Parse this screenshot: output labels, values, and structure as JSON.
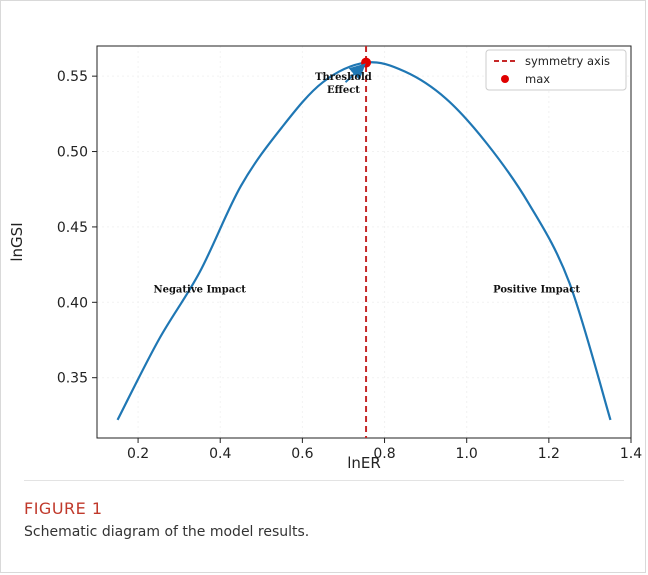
{
  "figure": {
    "label": "FIGURE 1",
    "caption": "Schematic diagram of the model results."
  },
  "chart_data": {
    "type": "line",
    "title": "",
    "xlabel": "lnER",
    "ylabel": "lnGSI",
    "xlim": [
      0.1,
      1.4
    ],
    "ylim": [
      0.31,
      0.57
    ],
    "xticks": [
      0.2,
      0.4,
      0.6,
      0.8,
      1.0,
      1.2,
      1.4
    ],
    "xtick_labels": [
      "0.2",
      "0.4",
      "0.6",
      "0.8",
      "1.0",
      "1.2",
      "1.4"
    ],
    "yticks": [
      0.35,
      0.4,
      0.45,
      0.5,
      0.55
    ],
    "ytick_labels": [
      "0.35",
      "0.40",
      "0.45",
      "0.50",
      "0.55"
    ],
    "grid": true,
    "legend_position": "top-right",
    "series": [
      {
        "kind": "curve",
        "color": "#1f77b4",
        "x": [
          0.15,
          0.25,
          0.35,
          0.45,
          0.55,
          0.65,
          0.755,
          0.85,
          0.95,
          1.05,
          1.15,
          1.25,
          1.35
        ],
        "y": [
          0.322,
          0.375,
          0.42,
          0.477,
          0.516,
          0.546,
          0.559,
          0.553,
          0.535,
          0.505,
          0.466,
          0.413,
          0.322
        ]
      },
      {
        "name": "symmetry axis",
        "kind": "vline",
        "color": "#c62828",
        "x": 0.755
      },
      {
        "name": "max",
        "kind": "point",
        "color": "#e00000",
        "x": 0.755,
        "y": 0.559
      }
    ],
    "annotations": [
      {
        "text_lines": [
          "Threshold",
          "Effect"
        ],
        "x": 0.7,
        "y": 0.546
      },
      {
        "text_lines": [
          "Negative Impact"
        ],
        "x": 0.35,
        "y": 0.409
      },
      {
        "text_lines": [
          "Positive Impact"
        ],
        "x": 1.17,
        "y": 0.409
      }
    ],
    "arrow": {
      "from": [
        0.705,
        0.546
      ],
      "to": [
        0.752,
        0.558
      ]
    }
  }
}
